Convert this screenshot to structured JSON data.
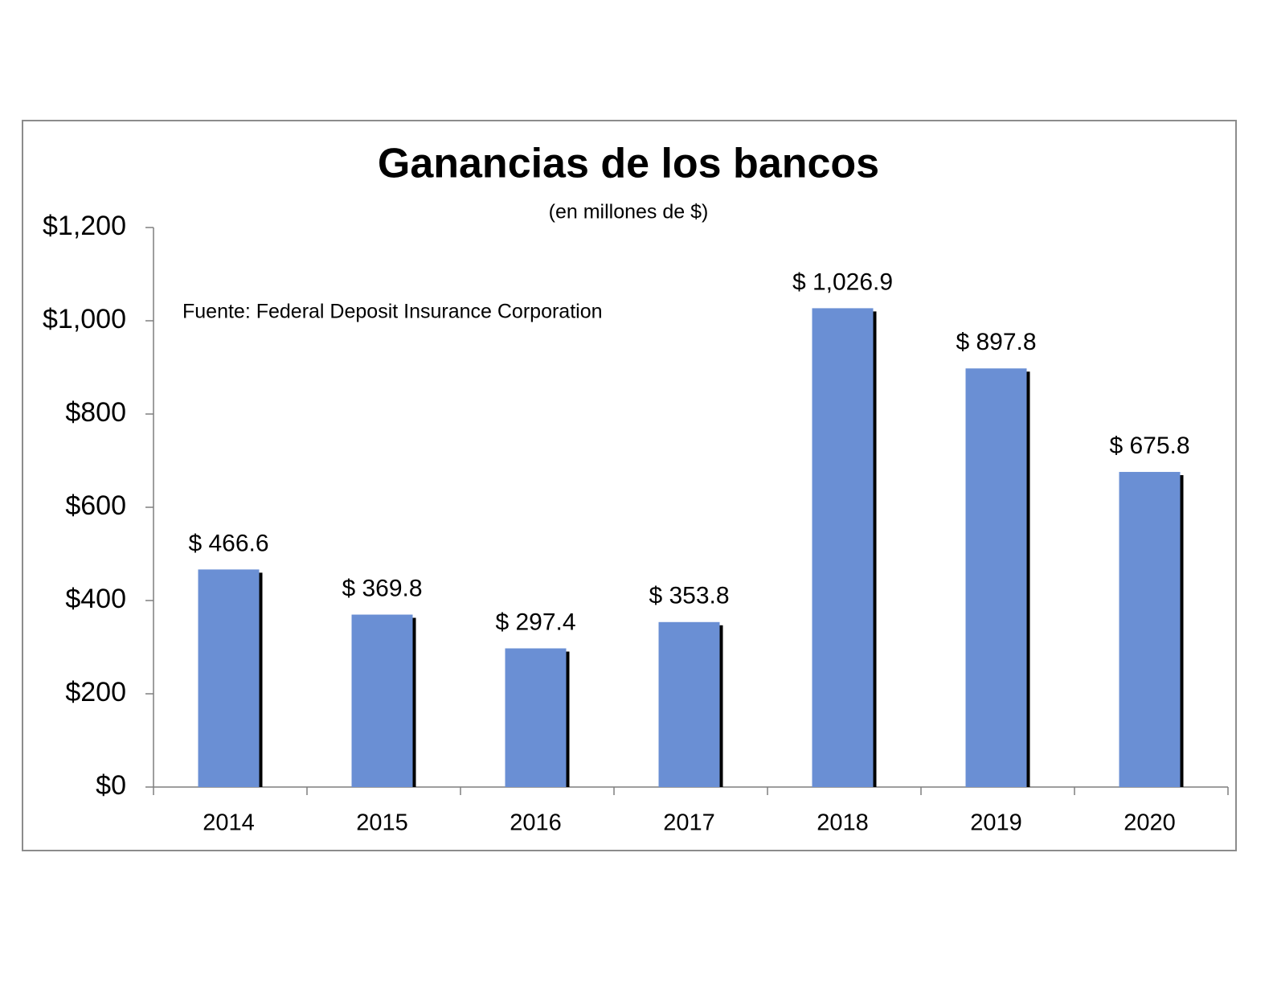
{
  "chart_data": {
    "type": "bar",
    "title": "Ganancias de los bancos",
    "subtitle": "(en millones de $)",
    "annotation": "Fuente: Federal Deposit Insurance Corporation",
    "categories": [
      "2014",
      "2015",
      "2016",
      "2017",
      "2018",
      "2019",
      "2020"
    ],
    "values": [
      466.6,
      369.8,
      297.4,
      353.8,
      1026.9,
      897.8,
      675.8
    ],
    "value_labels": [
      "$ 466.6",
      "$ 369.8",
      "$ 297.4",
      "$ 353.8",
      "$ 1,026.9",
      "$ 897.8",
      "$ 675.8"
    ],
    "color": "#6a8fd4",
    "shadow_color": "#000000",
    "ylim": [
      0,
      1200
    ],
    "yticks": [
      {
        "value": 0,
        "label": "$0"
      },
      {
        "value": 200,
        "label": "$200"
      },
      {
        "value": 400,
        "label": "$400"
      },
      {
        "value": 600,
        "label": "$600"
      },
      {
        "value": 800,
        "label": "$800"
      },
      {
        "value": 1000,
        "label": "$1,000"
      },
      {
        "value": 1200,
        "label": "$1,200"
      }
    ],
    "grid": false
  }
}
